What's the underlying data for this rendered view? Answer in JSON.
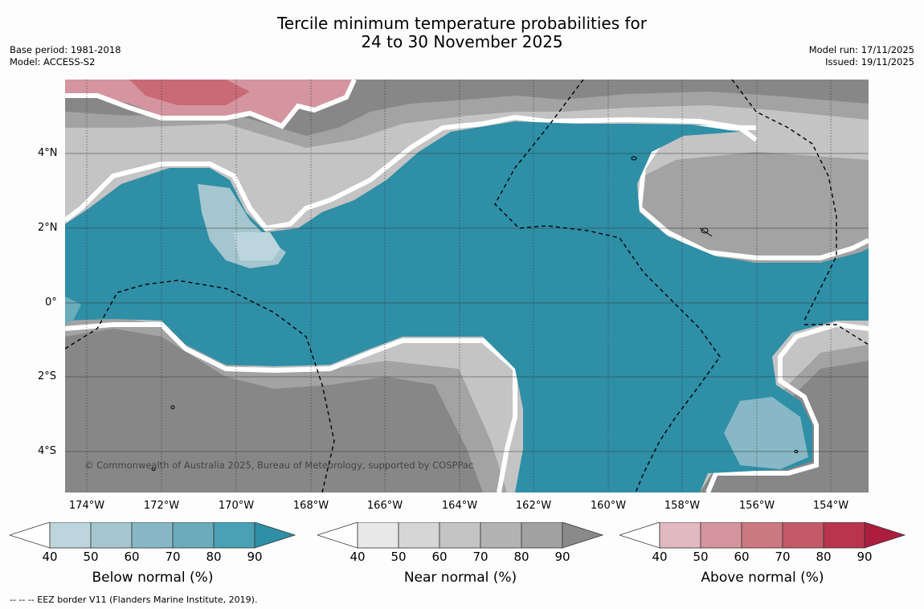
{
  "title_line1": "Tercile minimum temperature probabilities for",
  "title_line2": "24 to 30 November 2025",
  "base_period": "Base period: 1981-2018",
  "model": "Model: ACCESS-S2",
  "model_run": "Model run: 17/11/2025",
  "issued": "Issued: 19/11/2025",
  "copyright": "© Commonwealth of Australia 2025, Bureau of Meteorology, supported by COSPPac",
  "lat_labels": [
    "4°N",
    "2°N",
    "0°",
    "2°S",
    "4°S"
  ],
  "lon_labels": [
    "174°W",
    "172°W",
    "170°W",
    "168°W",
    "166°W",
    "164°W",
    "162°W",
    "160°W",
    "158°W",
    "156°W",
    "154°W"
  ],
  "colorbars": [
    {
      "title": "Below normal (%)",
      "ticks": [
        "40",
        "50",
        "60",
        "70",
        "80",
        "90"
      ],
      "colors": [
        "#bdd6dd",
        "#a5c6ce",
        "#88b8c5",
        "#6aacbb",
        "#4aa0b4",
        "#2e8fa6"
      ]
    },
    {
      "title": "Near normal (%)",
      "ticks": [
        "40",
        "50",
        "60",
        "70",
        "80",
        "90"
      ],
      "colors": [
        "#e8e8e8",
        "#d6d6d6",
        "#c4c4c4",
        "#b3b3b3",
        "#a1a1a1",
        "#8a8a8a"
      ]
    },
    {
      "title": "Above normal (%)",
      "ticks": [
        "40",
        "50",
        "60",
        "70",
        "80",
        "90"
      ],
      "colors": [
        "#e2b9c0",
        "#d5959f",
        "#cc7880",
        "#c45a68",
        "#b9354e",
        "#ad1d3d"
      ]
    }
  ],
  "footnote": "--  --  -- EEZ border V11 (Flanders Marine Institute, 2019)."
}
